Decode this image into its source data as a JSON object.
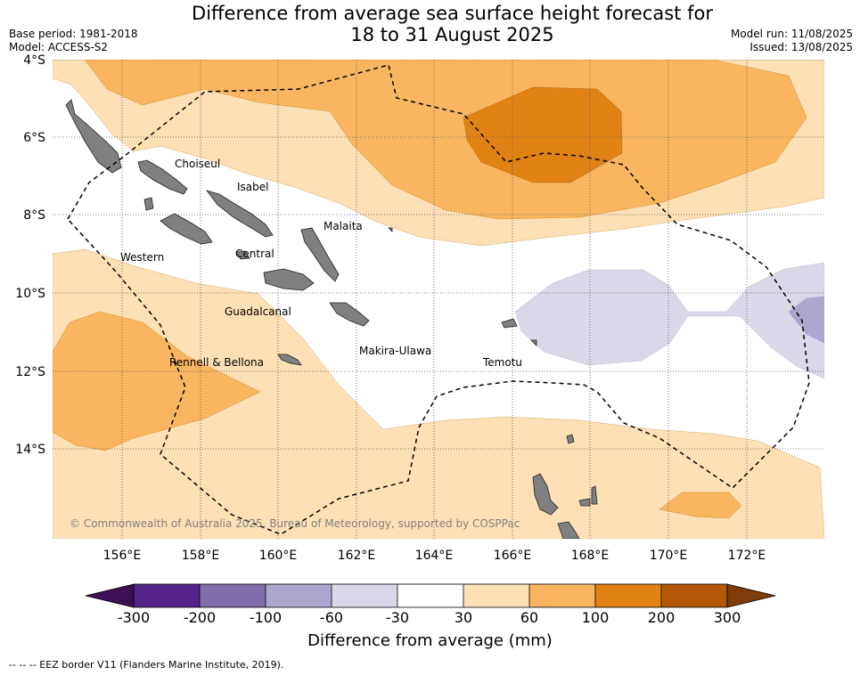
{
  "title_line1": "Difference from average sea surface height forecast for",
  "title_line2": "18 to 31 August 2025",
  "base_period": "Base period: 1981-2018",
  "model": "Model: ACCESS-S2",
  "model_run": "Model run: 11/08/2025",
  "issued": "Issued: 13/08/2025",
  "map": {
    "lat_labels": [
      "4°S",
      "6°S",
      "8°S",
      "10°S",
      "12°S",
      "14°S"
    ],
    "lon_labels": [
      "156°E",
      "158°E",
      "160°E",
      "162°E",
      "164°E",
      "166°E",
      "168°E",
      "170°E",
      "172°E"
    ],
    "places": [
      "Choiseul",
      "Isabel",
      "Malaita",
      "Western",
      "Central",
      "Guadalcanal",
      "Rennell & Bellona",
      "Makira-Ulawa",
      "Temotu"
    ],
    "credit": "© Commonwealth of Australia 2025, Bureau of Meteorology, supported by COSPPac"
  },
  "colorbar": {
    "title": "Difference from average (mm)",
    "ticks": [
      "-300",
      "-200",
      "-100",
      "-60",
      "-30",
      "30",
      "60",
      "100",
      "200",
      "300"
    ],
    "colors": [
      "#3d0f55",
      "#55238a",
      "#7f6eaa",
      "#aea6cf",
      "#d8d8e9",
      "#ffffff",
      "#fde0b5",
      "#f9b560",
      "#e08214",
      "#b35807",
      "#7f3b08"
    ]
  },
  "eez_note": "--  --  -- EEZ border V11 (Flanders Marine Institute, 2019)."
}
